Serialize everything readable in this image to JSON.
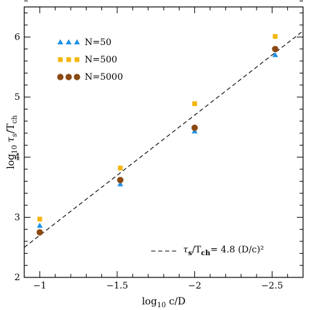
{
  "chart_data": {
    "type": "scatter",
    "xlabel": {
      "main": "log",
      "sub": "10",
      "rest": " c/D"
    },
    "ylabel": {
      "main": "log",
      "sub": "10",
      "tau": "τ",
      "tau_sub": "s",
      "slash": "/T",
      "T_sub": "ch"
    },
    "xlim": [
      -0.9,
      -2.7
    ],
    "ylim": [
      2,
      6.5
    ],
    "x_ticks": [
      -1,
      -1.5,
      -2,
      -2.5
    ],
    "x_tick_labels": [
      "−1",
      "−1.5",
      "−2",
      "−2.5"
    ],
    "y_ticks": [
      2,
      3,
      4,
      5,
      6
    ],
    "y_tick_labels": [
      "2",
      "3",
      "4",
      "5",
      "6"
    ],
    "x_minor_step": 0.1,
    "y_minor_step": 0.2,
    "legend_position": "top-left",
    "series": [
      {
        "name": "N=50",
        "marker": "triangle",
        "color": "#1e90e8",
        "points": [
          [
            -1,
            2.86
          ],
          [
            -1.52,
            3.55
          ],
          [
            -2,
            4.43
          ],
          [
            -2.52,
            5.7
          ]
        ]
      },
      {
        "name": "N=500",
        "marker": "square",
        "color": "#f5b50a",
        "points": [
          [
            -1,
            2.97
          ],
          [
            -1.52,
            3.82
          ],
          [
            -2,
            4.89
          ],
          [
            -2.52,
            6.01
          ]
        ]
      },
      {
        "name": "N=5000",
        "marker": "circle",
        "color": "#8b4a12",
        "points": [
          [
            -1,
            2.75
          ],
          [
            -1.52,
            3.62
          ],
          [
            -2,
            4.49
          ],
          [
            -2.52,
            5.8
          ]
        ]
      }
    ],
    "fit_line": {
      "slope": -2,
      "intercept": 0.7,
      "x_range": [
        -0.9,
        -2.7
      ],
      "style": "dashed",
      "label": {
        "tau": "τ",
        "tau_sub": "s",
        "slash": "/T",
        "T_sub": "ch",
        "eq": "= 4.8 (D/c)²"
      }
    }
  }
}
